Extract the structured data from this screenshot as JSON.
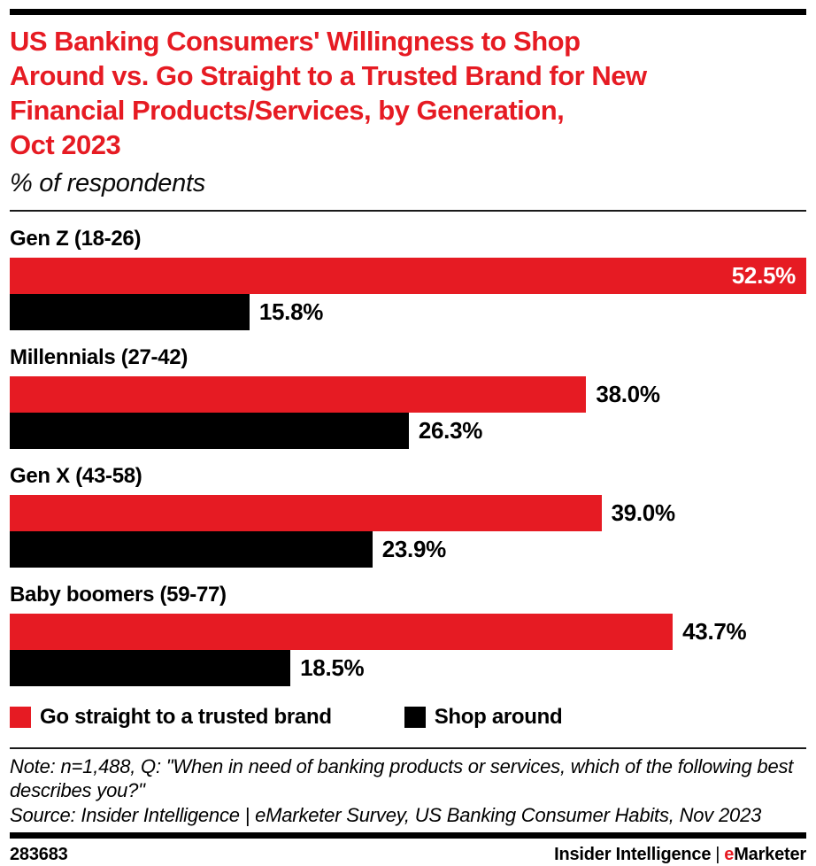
{
  "header": {
    "title": "US Banking Consumers' Willingness to Shop Around vs. Go Straight to a Trusted Brand for New Financial Products/Services, by Generation, Oct 2023",
    "title_lines": [
      "US Banking Consumers' Willingness to Shop",
      "Around vs. Go Straight to a Trusted Brand for New",
      "Financial Products/Services, by Generation,",
      "Oct 2023"
    ],
    "subtitle": "% of respondents"
  },
  "chart_data": {
    "type": "bar",
    "orientation": "horizontal",
    "title": "US Banking Consumers' Willingness to Shop Around vs. Go Straight to a Trusted Brand for New Financial Products/Services, by Generation, Oct 2023",
    "subtitle": "% of respondents",
    "categories": [
      "Gen Z (18-26)",
      "Millennials (27-42)",
      "Gen X (43-58)",
      "Baby boomers (59-77)"
    ],
    "series": [
      {
        "name": "Go straight to a trusted brand",
        "color": "#e61b23",
        "values": [
          52.5,
          38.0,
          39.0,
          43.7
        ],
        "labels": [
          "52.5%",
          "38.0%",
          "39.0%",
          "43.7%"
        ]
      },
      {
        "name": "Shop around",
        "color": "#000000",
        "values": [
          15.8,
          26.3,
          23.9,
          18.5
        ],
        "labels": [
          "15.8%",
          "26.3%",
          "23.9%",
          "18.5%"
        ]
      }
    ],
    "value_suffix": "%",
    "xlim": [
      0,
      52.5
    ],
    "grid": false,
    "legend_position": "bottom"
  },
  "footnote": {
    "note": "Note: n=1,488, Q: \"When in need of banking products or services, which of the following best describes you?\"",
    "source": "Source: Insider Intelligence | eMarketer Survey, US Banking Consumer Habits, Nov 2023"
  },
  "footer": {
    "chart_id": "283683",
    "brand_left": "Insider Intelligence",
    "separator": "|",
    "brand_e": "e",
    "brand_rest": "Marketer"
  },
  "colors": {
    "accent_red": "#e61b23",
    "bar_black": "#000000",
    "background": "#ffffff"
  }
}
